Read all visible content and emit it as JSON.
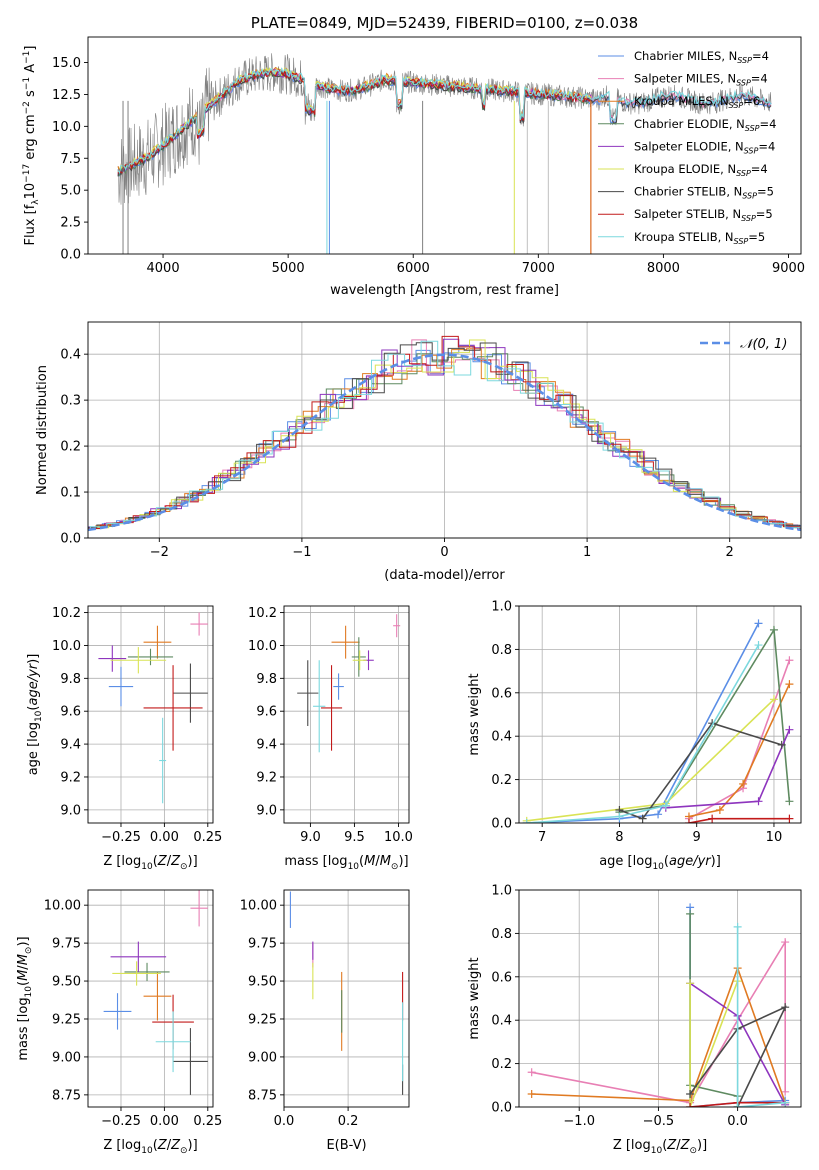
{
  "colors": [
    "#5b8ee6",
    "#e87fb4",
    "#e07a22",
    "#5e8a60",
    "#8e35be",
    "#d9e355",
    "#4a4a4a",
    "#c21a1a",
    "#7cd8de"
  ],
  "chart_data": [
    {
      "id": "spectrum",
      "type": "line",
      "title": "PLATE=0849, MJD=52439, FIBERID=0100, z=0.038",
      "xlabel": "wavelength [Angstrom, rest frame]",
      "ylabel": "Flux [f_λ 10^-17 erg cm^-2 s^-1 A^-1]",
      "xlim": [
        3400,
        9100
      ],
      "ylim": [
        0,
        17
      ],
      "xticks": [
        "4000",
        "5000",
        "6000",
        "7000",
        "8000",
        "9000"
      ],
      "yticks": [
        "0.0",
        "2.5",
        "5.0",
        "7.5",
        "10.0",
        "12.5",
        "15.0"
      ],
      "legend": [
        "Chabrier MILES, N_SSP=4",
        "Salpeter MILES, N_SSP=4",
        "Kroupa MILES, N_SSP=6",
        "Chabrier ELODIE, N_SSP=4",
        "Salpeter ELODIE, N_SSP=4",
        "Kroupa ELODIE, N_SSP=4",
        "Chabrier STELIB, N_SSP=5",
        "Salpeter STELIB, N_SSP=5",
        "Kroupa STELIB, N_SSP=5"
      ],
      "legend_position": "right"
    },
    {
      "id": "residuals",
      "type": "step",
      "xlabel": "(data-model)/error",
      "ylabel": "Normed distribution",
      "xlim": [
        -2.5,
        2.5
      ],
      "ylim": [
        0,
        0.47
      ],
      "xticks": [
        "−2",
        "−1",
        "0",
        "1",
        "2"
      ],
      "yticks": [
        "0.0",
        "0.1",
        "0.2",
        "0.3",
        "0.4"
      ],
      "reference_label": "𝒩(0, 1)",
      "legend_position": "top-right"
    },
    {
      "id": "age_vs_Z",
      "type": "errorbar",
      "xlabel": "Z [log10(Z/Z⊙)]",
      "ylabel": "age [log10(age/yr)]",
      "xlim": [
        -0.44,
        0.28
      ],
      "ylim": [
        8.92,
        10.24
      ],
      "xticks": [
        "−0.25",
        "0.00",
        "0.25"
      ],
      "yticks": [
        "9.0",
        "9.2",
        "9.4",
        "9.6",
        "9.8",
        "10.0",
        "10.2"
      ],
      "points": [
        {
          "x": -0.25,
          "y": 9.75,
          "xerr": 0.07,
          "yerr": 0.12
        },
        {
          "x": 0.2,
          "y": 10.13,
          "xerr": 0.05,
          "yerr": 0.07
        },
        {
          "x": -0.04,
          "y": 10.02,
          "xerr": 0.08,
          "yerr": 0.1
        },
        {
          "x": -0.08,
          "y": 9.93,
          "xerr": 0.13,
          "yerr": 0.05
        },
        {
          "x": -0.3,
          "y": 9.92,
          "xerr": 0.08,
          "yerr": 0.08
        },
        {
          "x": -0.15,
          "y": 9.91,
          "xerr": 0.16,
          "yerr": 0.08
        },
        {
          "x": 0.15,
          "y": 9.71,
          "xerr": 0.1,
          "yerr": 0.18
        },
        {
          "x": 0.05,
          "y": 9.62,
          "xerr": 0.17,
          "yerr": 0.26
        },
        {
          "x": -0.01,
          "y": 9.3,
          "xerr": 0.02,
          "yerr": 0.26
        }
      ]
    },
    {
      "id": "age_vs_mass",
      "type": "errorbar",
      "xlabel": "mass [log10(M/M⊙)]",
      "ylabel": "",
      "xlim": [
        8.7,
        10.12
      ],
      "ylim": [
        8.92,
        10.24
      ],
      "xticks": [
        "9.0",
        "9.5",
        "10.0"
      ],
      "yticks": [
        "9.0",
        "9.2",
        "9.4",
        "9.6",
        "9.8",
        "10.0",
        "10.2"
      ],
      "points": [
        {
          "x": 9.32,
          "y": 9.75,
          "xerr": 0.06,
          "yerr": 0.08
        },
        {
          "x": 9.98,
          "y": 10.12,
          "xerr": 0.04,
          "yerr": 0.07
        },
        {
          "x": 9.4,
          "y": 10.02,
          "xerr": 0.16,
          "yerr": 0.1
        },
        {
          "x": 9.55,
          "y": 9.93,
          "xerr": 0.08,
          "yerr": 0.12
        },
        {
          "x": 9.66,
          "y": 9.91,
          "xerr": 0.06,
          "yerr": 0.06
        },
        {
          "x": 9.56,
          "y": 9.91,
          "xerr": 0.08,
          "yerr": 0.06
        },
        {
          "x": 8.97,
          "y": 9.71,
          "xerr": 0.12,
          "yerr": 0.2
        },
        {
          "x": 9.24,
          "y": 9.62,
          "xerr": 0.12,
          "yerr": 0.26
        },
        {
          "x": 9.1,
          "y": 9.63,
          "xerr": 0.07,
          "yerr": 0.28
        }
      ]
    },
    {
      "id": "massweight_vs_age",
      "type": "line",
      "xlabel": "age [log10(age/yr)]",
      "ylabel": "mass weight",
      "xlim": [
        6.7,
        10.35
      ],
      "ylim": [
        0,
        1
      ],
      "xticks": [
        "7",
        "8",
        "9",
        "10"
      ],
      "yticks": [
        "0.0",
        "0.2",
        "0.4",
        "0.6",
        "0.8",
        "1.0"
      ],
      "series": [
        {
          "x": [
            6.8,
            8.0,
            8.5,
            9.8
          ],
          "y": [
            0.0,
            0.02,
            0.04,
            0.92
          ]
        },
        {
          "x": [
            8.9,
            9.6,
            10.2
          ],
          "y": [
            0.02,
            0.16,
            0.75
          ]
        },
        {
          "x": [
            8.9,
            9.3,
            9.6,
            10.2
          ],
          "y": [
            0.03,
            0.06,
            0.18,
            0.64
          ]
        },
        {
          "x": [
            8.0,
            8.6,
            10.0,
            10.2
          ],
          "y": [
            0.05,
            0.08,
            0.89,
            0.1
          ]
        },
        {
          "x": [
            8.6,
            9.8,
            10.2
          ],
          "y": [
            0.07,
            0.1,
            0.43
          ]
        },
        {
          "x": [
            6.8,
            8.6,
            10.0
          ],
          "y": [
            0.01,
            0.09,
            0.57
          ]
        },
        {
          "x": [
            8.0,
            8.3,
            9.2,
            10.1
          ],
          "y": [
            0.06,
            0.02,
            0.46,
            0.36
          ]
        },
        {
          "x": [
            8.9,
            9.2,
            10.2
          ],
          "y": [
            0.0,
            0.02,
            0.02
          ]
        },
        {
          "x": [
            6.8,
            8.0,
            8.6,
            9.8
          ],
          "y": [
            0.0,
            0.03,
            0.08,
            0.82
          ]
        }
      ]
    },
    {
      "id": "mass_vs_Z",
      "type": "errorbar",
      "xlabel": "Z [log10(Z/Z⊙)]",
      "ylabel": "mass [log10(M/M⊙)]",
      "xlim": [
        -0.44,
        0.28
      ],
      "ylim": [
        8.67,
        10.1
      ],
      "xticks": [
        "−0.25",
        "0.00",
        "0.25"
      ],
      "yticks": [
        "8.75",
        "9.00",
        "9.25",
        "9.50",
        "9.75",
        "10.00"
      ],
      "points": [
        {
          "x": -0.27,
          "y": 9.3,
          "xerr": 0.08,
          "yerr": 0.12
        },
        {
          "x": 0.2,
          "y": 9.98,
          "xerr": 0.05,
          "yerr": 0.12
        },
        {
          "x": -0.04,
          "y": 9.4,
          "xerr": 0.08,
          "yerr": 0.16
        },
        {
          "x": -0.1,
          "y": 9.56,
          "xerr": 0.13,
          "yerr": 0.06
        },
        {
          "x": -0.15,
          "y": 9.66,
          "xerr": 0.16,
          "yerr": 0.1
        },
        {
          "x": -0.16,
          "y": 9.55,
          "xerr": 0.14,
          "yerr": 0.08
        },
        {
          "x": 0.15,
          "y": 8.97,
          "xerr": 0.1,
          "yerr": 0.22
        },
        {
          "x": 0.05,
          "y": 9.23,
          "xerr": 0.12,
          "yerr": 0.18
        },
        {
          "x": 0.05,
          "y": 9.1,
          "xerr": 0.1,
          "yerr": 0.2
        }
      ]
    },
    {
      "id": "mass_vs_ebv",
      "type": "errorbar",
      "xlabel": "E(B-V)",
      "ylabel": "",
      "xlim": [
        0.0,
        0.39
      ],
      "ylim": [
        8.67,
        10.1
      ],
      "xticks": [
        "0.0",
        "0.2"
      ],
      "yticks": [
        "8.75",
        "9.00",
        "9.25",
        "9.50",
        "9.75",
        "10.00"
      ],
      "points": [
        {
          "x": 0.02,
          "y": 9.97,
          "xerr": 0.0,
          "yerr": 0.12
        },
        {
          "x": 0.09,
          "y": 9.67,
          "xerr": 0.0,
          "yerr": 0.08
        },
        {
          "x": 0.18,
          "y": 9.3,
          "xerr": 0.0,
          "yerr": 0.26
        },
        {
          "x": 0.18,
          "y": 9.3,
          "xerr": 0.0,
          "yerr": 0.14
        },
        {
          "x": 0.09,
          "y": 9.7,
          "xerr": 0.0,
          "yerr": 0.06
        },
        {
          "x": 0.09,
          "y": 9.5,
          "xerr": 0.0,
          "yerr": 0.12
        },
        {
          "x": 0.37,
          "y": 8.85,
          "xerr": 0.0,
          "yerr": 0.1
        },
        {
          "x": 0.37,
          "y": 9.4,
          "xerr": 0.0,
          "yerr": 0.16
        },
        {
          "x": 0.37,
          "y": 9.1,
          "xerr": 0.0,
          "yerr": 0.26
        }
      ]
    },
    {
      "id": "massweight_vs_Z",
      "type": "line",
      "xlabel": "Z [log10(Z/Z⊙)]",
      "ylabel": "mass weight",
      "xlim": [
        -1.38,
        0.4
      ],
      "ylim": [
        0,
        1
      ],
      "xticks": [
        "−1.0",
        "−0.5",
        "0.0"
      ],
      "yticks": [
        "0.0",
        "0.2",
        "0.4",
        "0.6",
        "0.8",
        "1.0"
      ],
      "series": [
        {
          "x": [
            -0.3,
            -0.3,
            0.0,
            0.3
          ],
          "y": [
            0.92,
            0.0,
            0.02,
            0.03
          ]
        },
        {
          "x": [
            -1.3,
            -0.3,
            0.0,
            0.3,
            0.3
          ],
          "y": [
            0.16,
            0.02,
            0.4,
            0.76,
            0.07
          ]
        },
        {
          "x": [
            -1.3,
            -0.3,
            0.0,
            0.3
          ],
          "y": [
            0.06,
            0.03,
            0.64,
            0.02
          ]
        },
        {
          "x": [
            -0.3,
            -0.3,
            0.0,
            0.0
          ],
          "y": [
            0.89,
            0.1,
            0.05,
            0.0
          ]
        },
        {
          "x": [
            -0.3,
            0.0,
            0.3
          ],
          "y": [
            0.57,
            0.42,
            0.01
          ]
        },
        {
          "x": [
            -0.3,
            -0.3,
            0.0
          ],
          "y": [
            0.57,
            0.0,
            0.58
          ]
        },
        {
          "x": [
            -0.3,
            0.0,
            0.3,
            0.0
          ],
          "y": [
            0.06,
            0.36,
            0.46,
            0.0
          ]
        },
        {
          "x": [
            -0.3,
            0.0,
            0.3
          ],
          "y": [
            0.0,
            0.02,
            0.02
          ]
        },
        {
          "x": [
            0.0,
            0.0,
            0.3
          ],
          "y": [
            0.83,
            0.0,
            0.02
          ]
        }
      ]
    }
  ]
}
